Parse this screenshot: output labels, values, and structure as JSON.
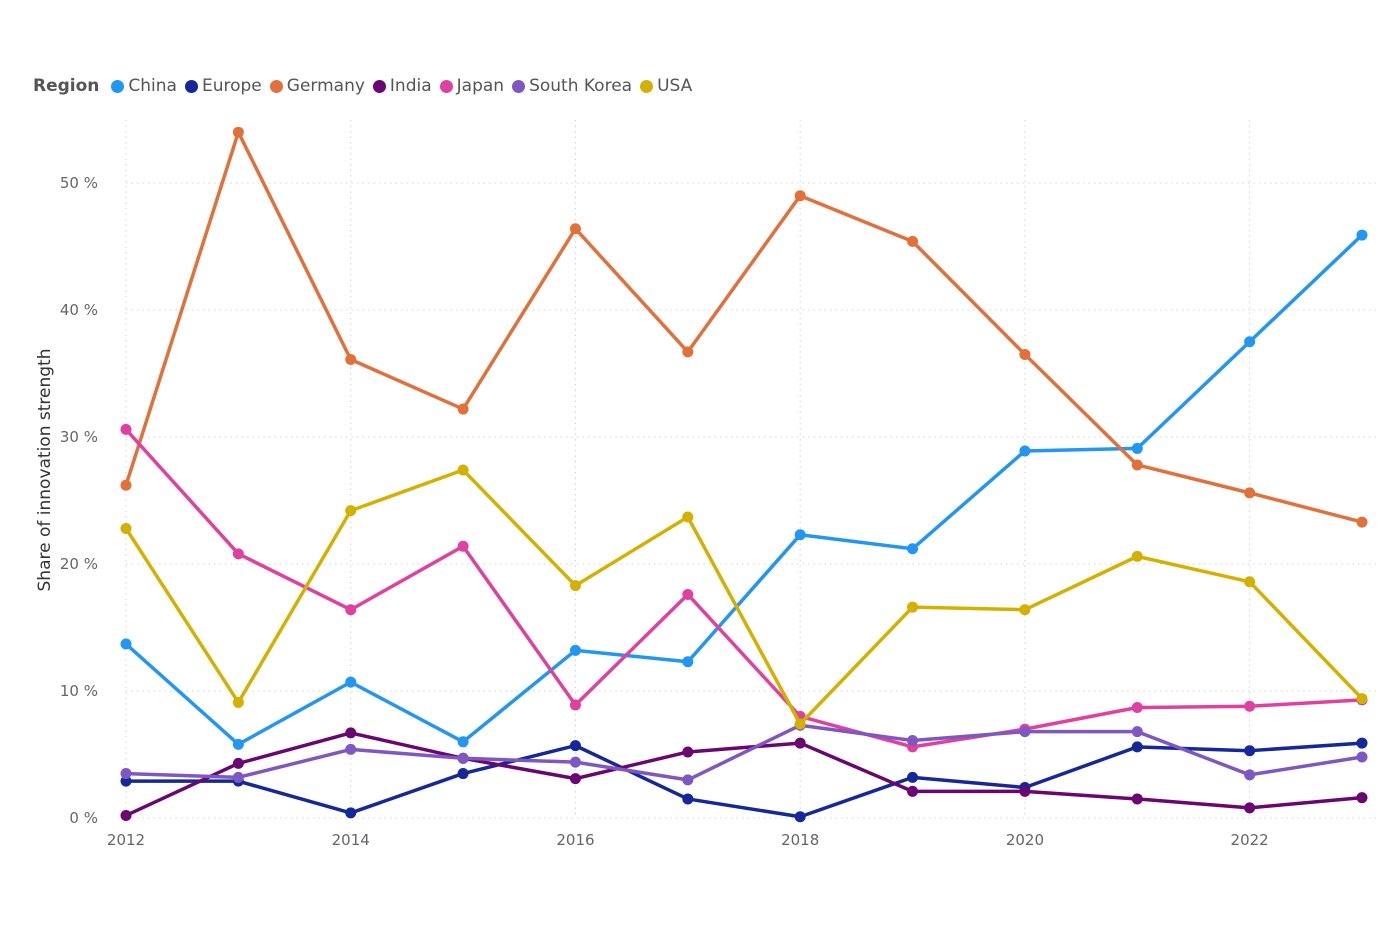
{
  "legend": {
    "title": "Region"
  },
  "chart_data": {
    "type": "line",
    "ylabel": "Share of innovation strength",
    "xlabel": "",
    "x": [
      2012,
      2013,
      2014,
      2015,
      2016,
      2017,
      2018,
      2019,
      2020,
      2021,
      2022,
      2023
    ],
    "xticks": [
      "2012",
      "2014",
      "2016",
      "2018",
      "2020",
      "2022"
    ],
    "ylim": [
      0,
      55
    ],
    "yticks": [
      0,
      10,
      20,
      30,
      40,
      50
    ],
    "ytick_labels": [
      "0 %",
      "10 %",
      "20 %",
      "30 %",
      "40 %",
      "50 %"
    ],
    "grid": "dotted",
    "legend_position": "top-left",
    "series": [
      {
        "name": "China",
        "color": "#2196F3",
        "values": [
          13.7,
          5.8,
          10.7,
          6.0,
          13.2,
          12.3,
          22.3,
          21.2,
          28.9,
          29.1,
          37.5,
          45.9
        ]
      },
      {
        "name": "Europe",
        "color": "#14279B",
        "values": [
          2.9,
          2.9,
          0.4,
          3.5,
          5.7,
          1.5,
          0.1,
          3.2,
          2.4,
          5.6,
          5.3,
          5.9
        ]
      },
      {
        "name": "Germany",
        "color": "#E2703A",
        "values": [
          26.2,
          54.0,
          36.1,
          32.2,
          46.4,
          36.7,
          49.0,
          45.4,
          36.5,
          27.8,
          25.6,
          23.3
        ]
      },
      {
        "name": "India",
        "color": "#6A0572",
        "values": [
          0.2,
          4.3,
          6.7,
          4.7,
          3.1,
          5.2,
          5.9,
          2.1,
          2.1,
          1.5,
          0.8,
          1.6
        ]
      },
      {
        "name": "Japan",
        "color": "#E040A0",
        "values": [
          30.6,
          20.8,
          16.4,
          21.4,
          8.9,
          17.6,
          8.0,
          5.6,
          7.0,
          8.7,
          8.8,
          9.3
        ]
      },
      {
        "name": "South Korea",
        "color": "#7E57C2",
        "values": [
          3.5,
          3.2,
          5.4,
          4.7,
          4.4,
          3.0,
          7.3,
          6.1,
          6.8,
          6.8,
          3.4,
          4.8
        ]
      },
      {
        "name": "USA",
        "color": "#D4B000",
        "values": [
          22.8,
          9.1,
          24.2,
          27.4,
          18.3,
          23.7,
          7.4,
          16.6,
          16.4,
          20.6,
          18.6,
          9.4
        ]
      }
    ]
  }
}
